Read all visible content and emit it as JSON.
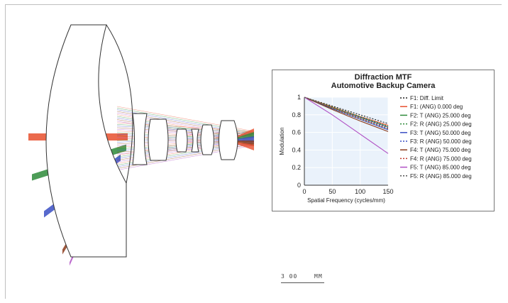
{
  "lens_layout": {
    "ray_colors": [
      "#e8502e",
      "#2e8b3a",
      "#3a4fc4",
      "#8b3a1a",
      "#b04fc4"
    ]
  },
  "scale_bar": {
    "value": "3 00",
    "unit": "MM"
  },
  "chart_data": {
    "type": "line",
    "title": "Diffraction MTF",
    "subtitle": "Automotive Backup Camera",
    "xlabel": "Spatial Frequency (cycles/mm)",
    "ylabel": "Modulation",
    "xlim": [
      0,
      150
    ],
    "ylim": [
      0,
      1
    ],
    "xticks": [
      "0",
      "50",
      "100",
      "150"
    ],
    "yticks": [
      "0",
      "0.2",
      "0.4",
      "0.6",
      "0.8",
      "1"
    ],
    "grid": true,
    "legend_position": "right",
    "series": [
      {
        "name": "F1: Diff. Limit",
        "color": "#222222",
        "dash": "dotted",
        "x": [
          0,
          50,
          100,
          150
        ],
        "y": [
          1.0,
          0.9,
          0.8,
          0.7
        ]
      },
      {
        "name": "F1: (ANG) 0.000 deg",
        "color": "#e8502e",
        "dash": "solid",
        "x": [
          0,
          50,
          100,
          150
        ],
        "y": [
          1.0,
          0.89,
          0.78,
          0.68
        ]
      },
      {
        "name": "F2: T (ANG) 25.000 deg",
        "color": "#2e8b3a",
        "dash": "solid",
        "x": [
          0,
          50,
          100,
          150
        ],
        "y": [
          1.0,
          0.88,
          0.77,
          0.66
        ]
      },
      {
        "name": "F2: R (ANG) 25.000 deg",
        "color": "#2e8b3a",
        "dash": "dotted",
        "x": [
          0,
          50,
          100,
          150
        ],
        "y": [
          1.0,
          0.89,
          0.78,
          0.67
        ]
      },
      {
        "name": "F3: T (ANG) 50.000 deg",
        "color": "#3a4fc4",
        "dash": "solid",
        "x": [
          0,
          50,
          100,
          150
        ],
        "y": [
          1.0,
          0.87,
          0.75,
          0.63
        ]
      },
      {
        "name": "F3: R (ANG) 50.000 deg",
        "color": "#3a4fc4",
        "dash": "dotted",
        "x": [
          0,
          50,
          100,
          150
        ],
        "y": [
          1.0,
          0.88,
          0.77,
          0.66
        ]
      },
      {
        "name": "F4: T (ANG) 75.000 deg",
        "color": "#8b3a1a",
        "dash": "solid",
        "x": [
          0,
          50,
          100,
          150
        ],
        "y": [
          1.0,
          0.86,
          0.73,
          0.61
        ]
      },
      {
        "name": "F4: R (ANG) 75.000 deg",
        "color": "#c0392b",
        "dash": "dotted",
        "x": [
          0,
          50,
          100,
          150
        ],
        "y": [
          1.0,
          0.88,
          0.76,
          0.65
        ]
      },
      {
        "name": "F5: T (ANG) 85.000 deg",
        "color": "#b04fc4",
        "dash": "solid",
        "x": [
          0,
          50,
          100,
          150
        ],
        "y": [
          1.0,
          0.8,
          0.58,
          0.36
        ]
      },
      {
        "name": "F5: R (ANG) 85.000 deg",
        "color": "#555555",
        "dash": "dotted",
        "x": [
          0,
          50,
          100,
          150
        ],
        "y": [
          1.0,
          0.87,
          0.75,
          0.64
        ]
      }
    ]
  }
}
